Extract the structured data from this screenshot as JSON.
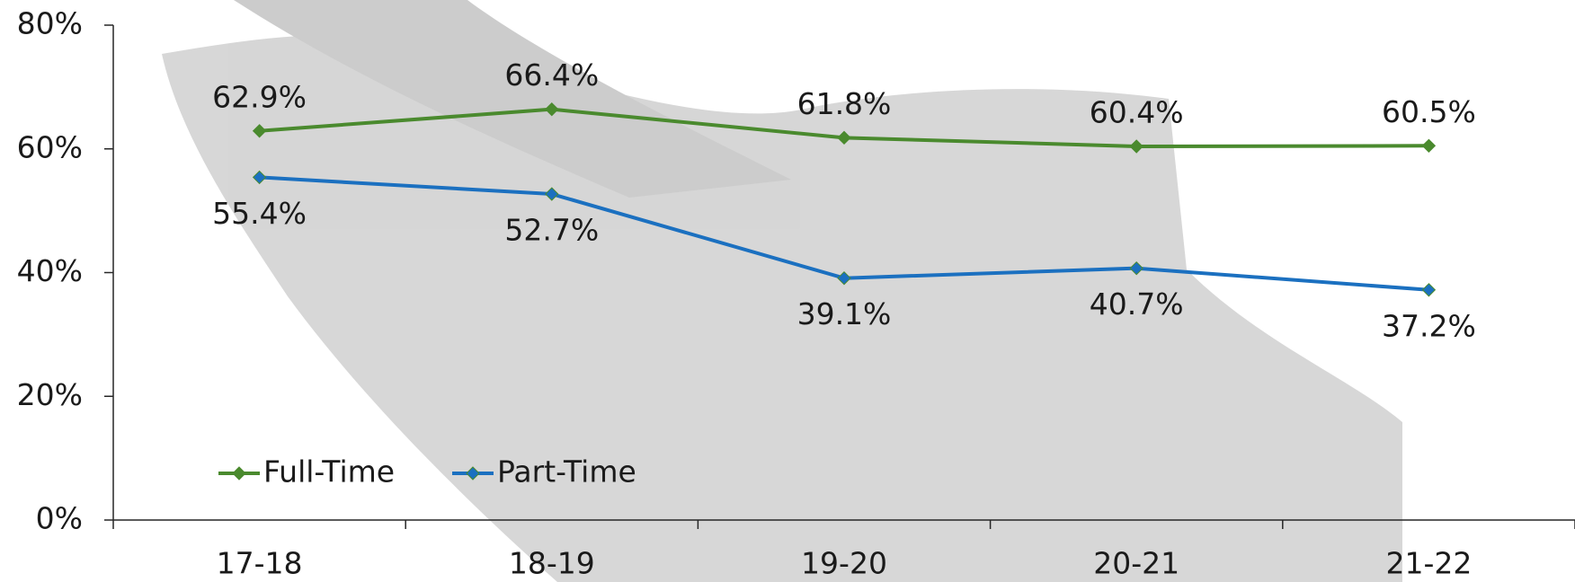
{
  "chart_data": {
    "type": "line",
    "categories": [
      "17-18",
      "18-19",
      "19-20",
      "20-21",
      "21-22"
    ],
    "series": [
      {
        "name": "Full-Time",
        "color": "#4a8a2e",
        "values": [
          62.9,
          66.4,
          61.8,
          60.4,
          60.5
        ],
        "value_labels": [
          "62.9%",
          "66.4%",
          "61.8%",
          "60.4%",
          "60.5%"
        ]
      },
      {
        "name": "Part-Time",
        "color": "#1b70c0",
        "values": [
          55.4,
          52.7,
          39.1,
          40.7,
          37.2
        ],
        "value_labels": [
          "55.4%",
          "52.7%",
          "39.1%",
          "40.7%",
          "37.2%"
        ]
      }
    ],
    "ylim": [
      0,
      80
    ],
    "yticks": [
      {
        "value": 0,
        "label": "0%"
      },
      {
        "value": 20,
        "label": "20%"
      },
      {
        "value": 40,
        "label": "40%"
      },
      {
        "value": 60,
        "label": "60%"
      },
      {
        "value": 80,
        "label": "80%"
      }
    ],
    "grid": false,
    "legend": "lower-left"
  }
}
